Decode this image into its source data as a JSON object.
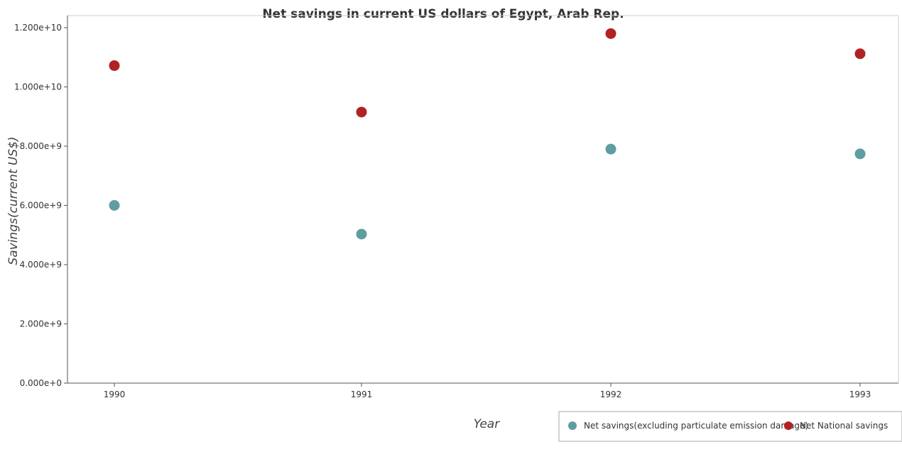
{
  "chart_data": {
    "type": "scatter",
    "title": "Net savings in current US dollars of Egypt, Arab Rep.",
    "xlabel": "Year",
    "ylabel": "Savings(current US$)",
    "categories": [
      "1990",
      "1991",
      "1992",
      "1993"
    ],
    "ylim": [
      0,
      12000000000
    ],
    "yticks": [
      {
        "value": 0,
        "label": "0.000e+0"
      },
      {
        "value": 2000000000,
        "label": "2.000e+9"
      },
      {
        "value": 4000000000,
        "label": "4.000e+9"
      },
      {
        "value": 6000000000,
        "label": "6.000e+9"
      },
      {
        "value": 8000000000,
        "label": "8.000e+9"
      },
      {
        "value": 10000000000,
        "label": "1.000e+10"
      },
      {
        "value": 12000000000,
        "label": "1.200e+10"
      }
    ],
    "grid": false,
    "legend_position": "bottom-right",
    "series": [
      {
        "name": "Net savings(excluding particulate emission damage)",
        "color": "#5f9ea0",
        "values": [
          6000000000,
          5030000000,
          7900000000,
          7740000000
        ]
      },
      {
        "name": "Net National savings",
        "color": "#b22222",
        "values": [
          10720000000,
          9150000000,
          11800000000,
          11120000000
        ]
      }
    ]
  }
}
